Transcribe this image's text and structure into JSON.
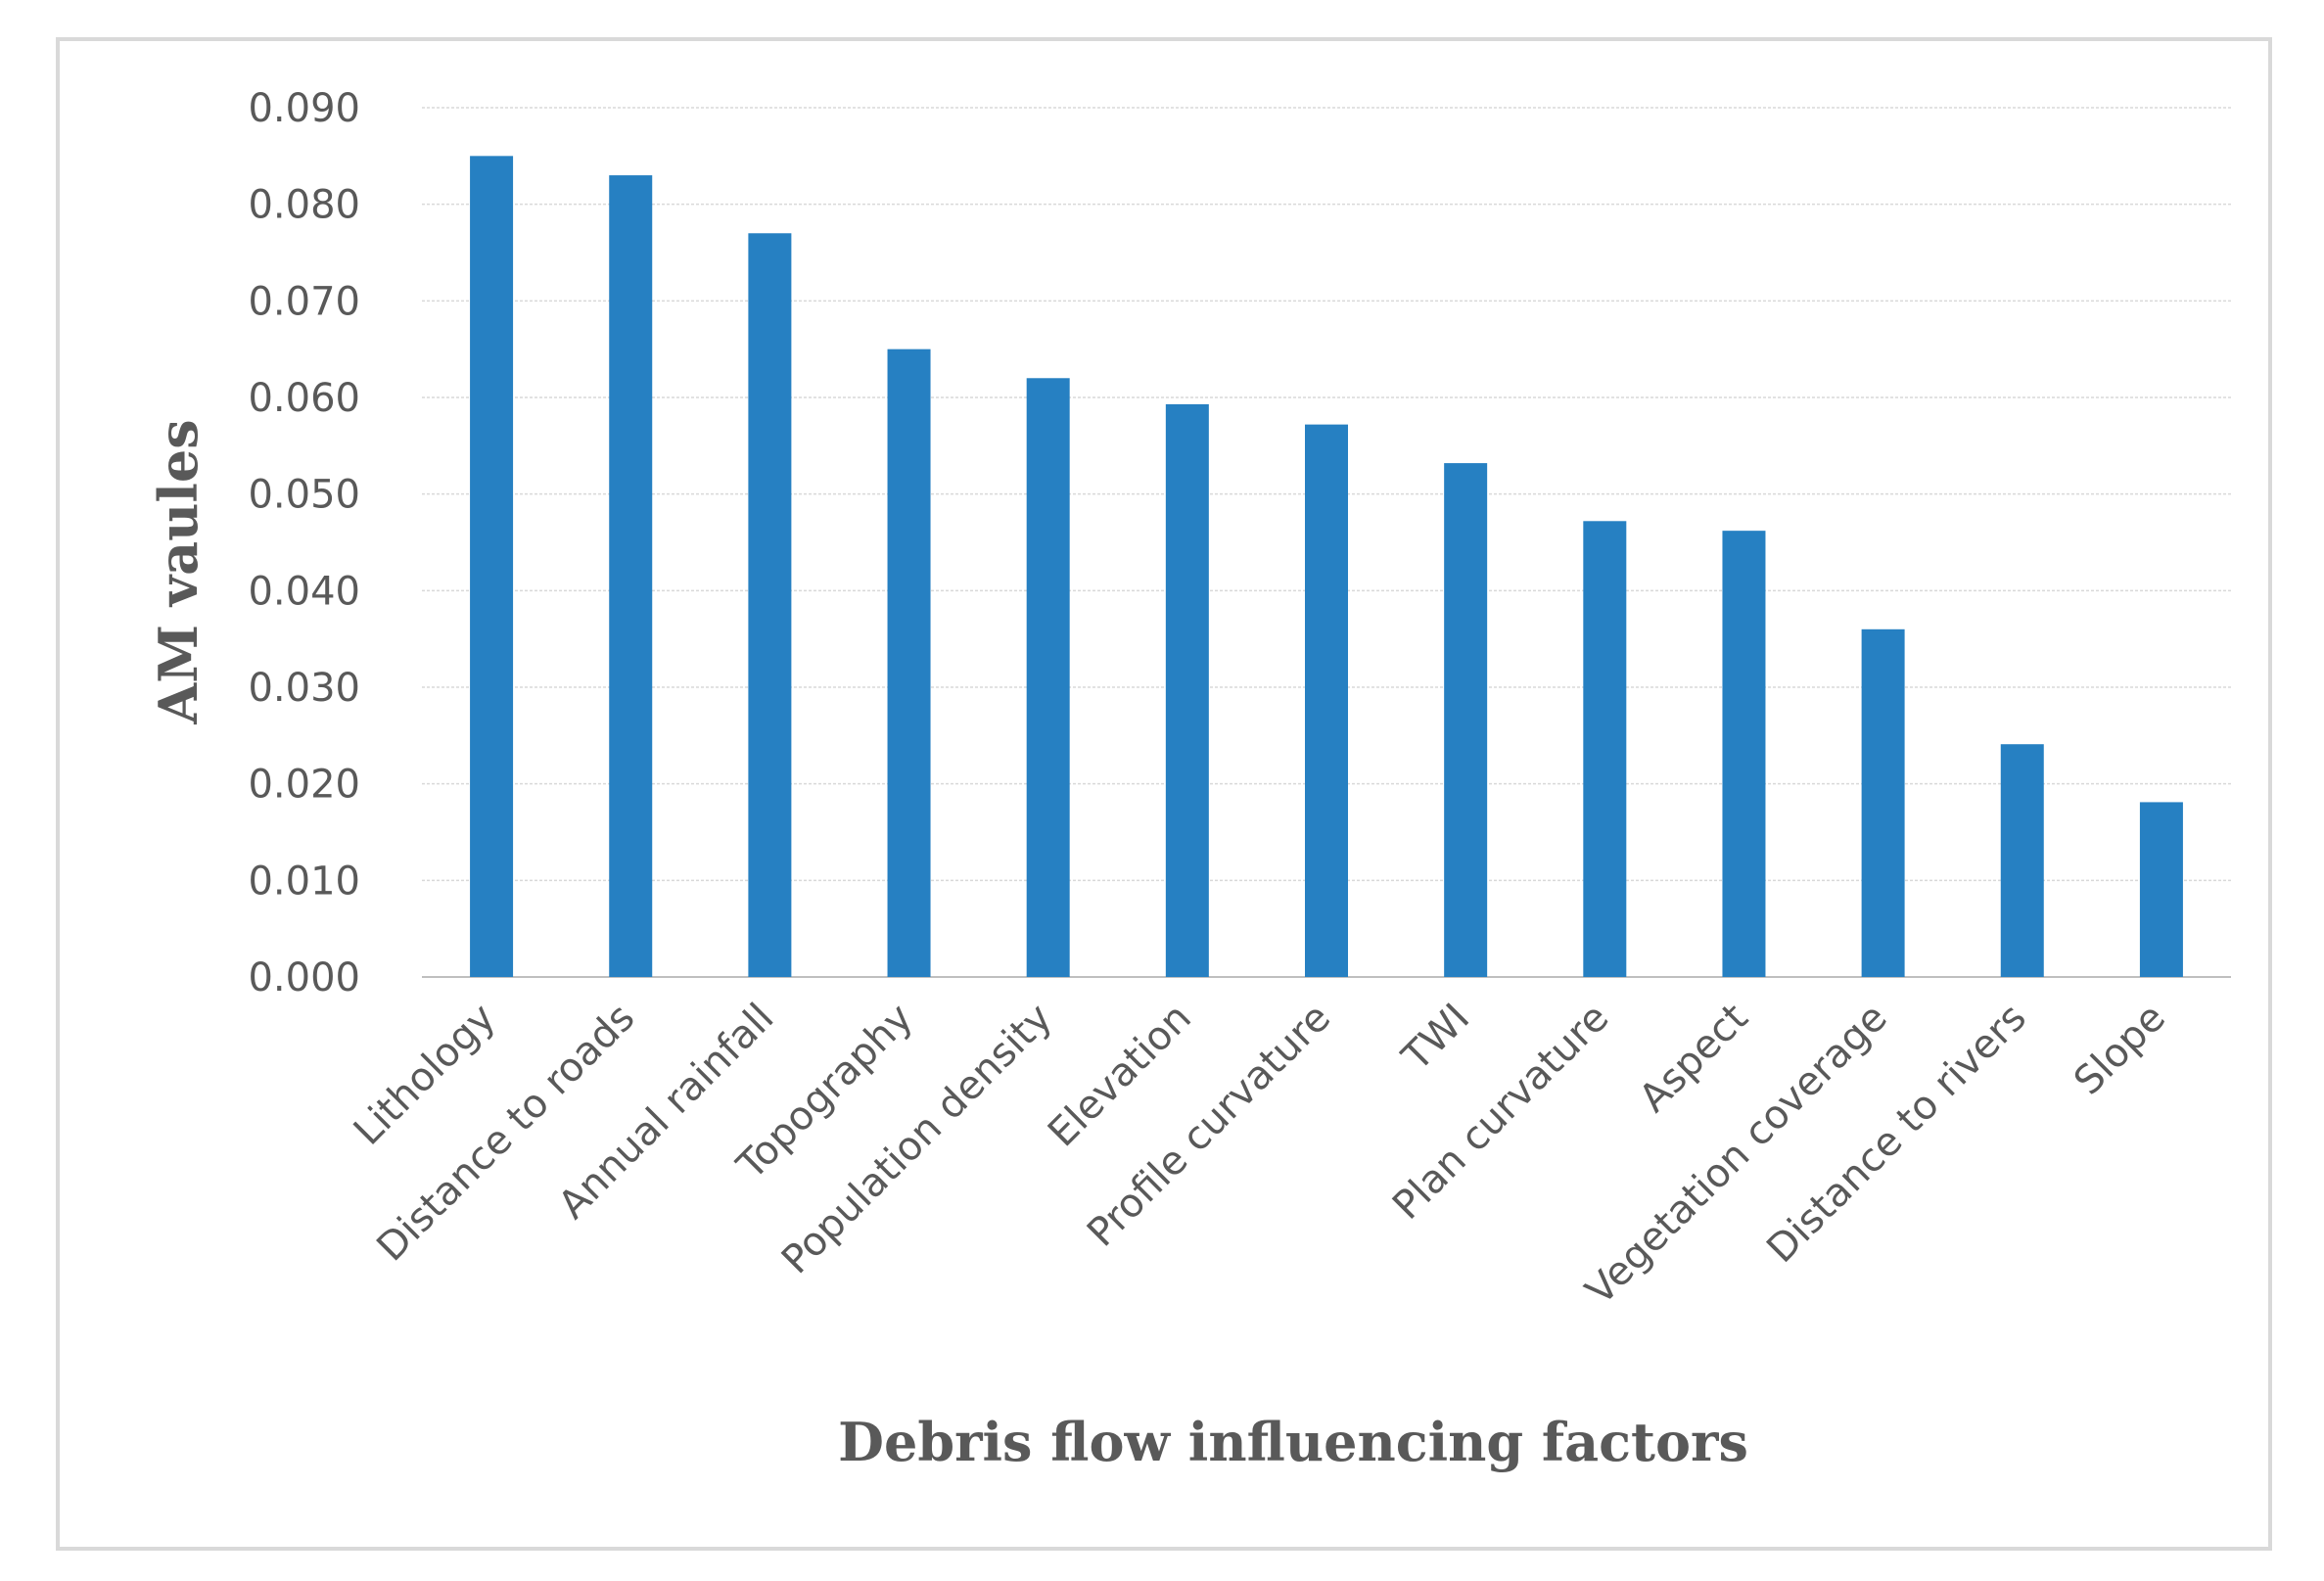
{
  "chart_data": {
    "type": "bar",
    "title": "",
    "xlabel": "Debris flow influencing factors",
    "ylabel": "AM vaules",
    "ylim": [
      0,
      0.09
    ],
    "yticks": [
      "0.000",
      "0.010",
      "0.020",
      "0.030",
      "0.040",
      "0.050",
      "0.060",
      "0.070",
      "0.080",
      "0.090"
    ],
    "grid": true,
    "legend": "none",
    "bar_color": "#2680c2",
    "categories": [
      "Lithology",
      "Distance to roads",
      "Annual rainfall",
      "Topography",
      "Population density",
      "Elevation",
      "Profile curvature",
      "TWI",
      "Plan curvature",
      "Aspect",
      "Vegetation coverage",
      "Distance to rivers",
      "Slope"
    ],
    "values": [
      0.085,
      0.083,
      0.077,
      0.065,
      0.062,
      0.0593,
      0.0572,
      0.0532,
      0.0472,
      0.0462,
      0.036,
      0.0241,
      0.0181
    ]
  }
}
